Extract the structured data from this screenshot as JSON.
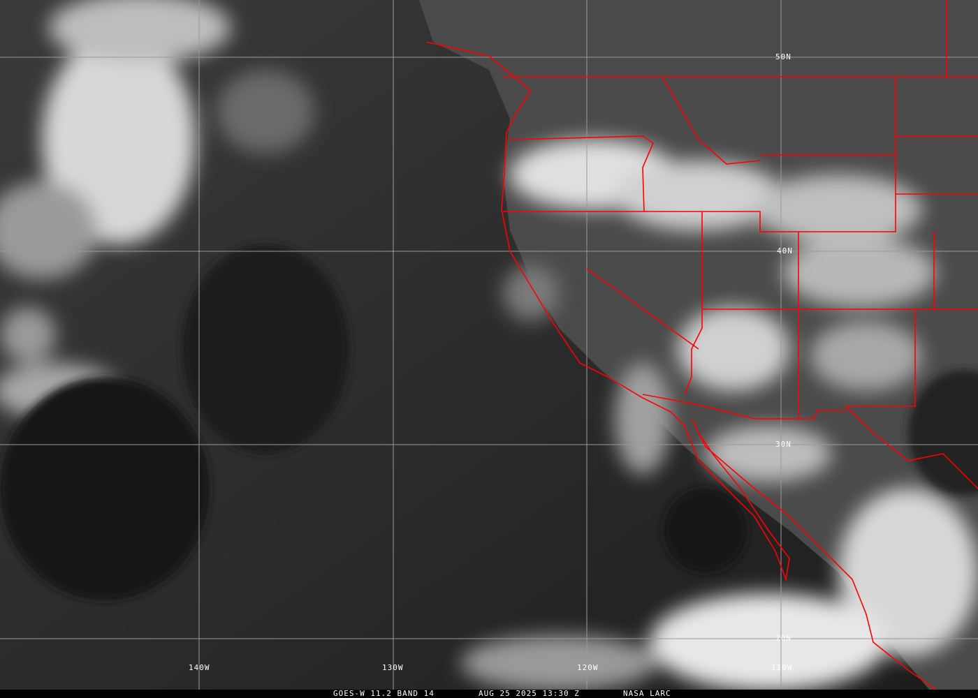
{
  "image": {
    "border_color": "#ff0000",
    "grid_color": "#9a9a9a"
  },
  "grid_labels": {
    "latitudes": [
      "50N",
      "40N",
      "30N",
      "20N"
    ],
    "longitudes": [
      "140W",
      "130W",
      "120W",
      "110W"
    ]
  },
  "caption": {
    "satellite": "GOES-W 11.2 BAND 14",
    "datetime": "AUG 25 2025 13:30 Z",
    "source": "NASA LARC"
  }
}
